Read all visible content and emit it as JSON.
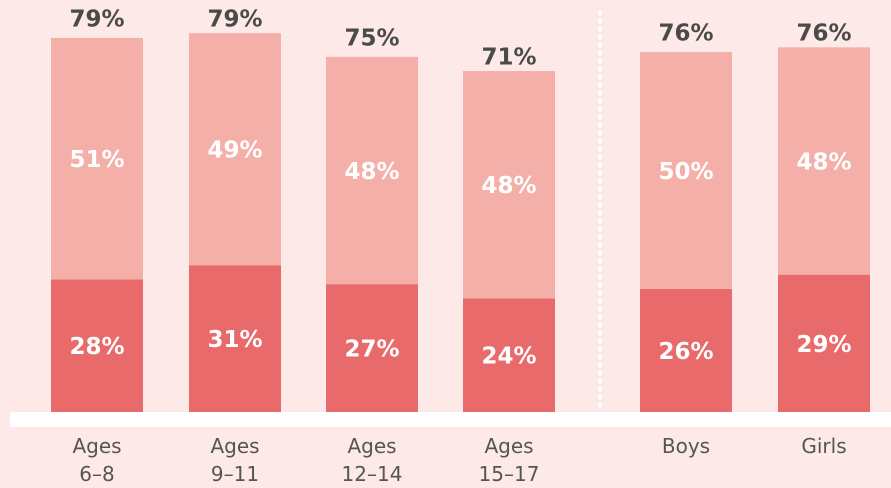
{
  "chart_data": {
    "type": "stacked-bar",
    "categories": [
      "Ages 6–8",
      "Ages 9–11",
      "Ages 12–14",
      "Ages 15–17",
      "Boys",
      "Girls"
    ],
    "series": [
      {
        "color": "#e96a6b",
        "values": [
          28,
          31,
          27,
          24,
          26,
          29
        ],
        "value_labels": [
          "28%",
          "31%",
          "27%",
          "24%",
          "26%",
          "29%"
        ]
      },
      {
        "color": "#f4b0a8",
        "values": [
          51,
          49,
          48,
          48,
          50,
          48
        ],
        "value_labels": [
          "51%",
          "49%",
          "48%",
          "48%",
          "50%",
          "48%"
        ]
      }
    ],
    "totals": [
      79,
      79,
      75,
      71,
      76,
      76
    ],
    "total_labels": [
      "79%",
      "79%",
      "75%",
      "71%",
      "76%",
      "76%"
    ],
    "ylim": [
      0,
      87
    ]
  }
}
